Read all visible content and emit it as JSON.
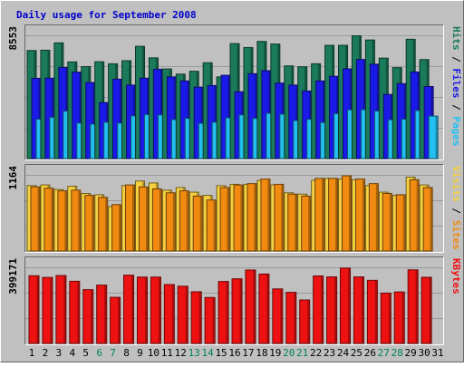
{
  "chart_data": [
    {
      "type": "bar",
      "title": "Daily usage for September 2008",
      "categories": [
        "1",
        "2",
        "3",
        "4",
        "5",
        "6",
        "7",
        "8",
        "9",
        "10",
        "11",
        "12",
        "13",
        "14",
        "15",
        "16",
        "17",
        "18",
        "19",
        "20",
        "21",
        "22",
        "23",
        "24",
        "25",
        "26",
        "27",
        "28",
        "29",
        "30",
        "31"
      ],
      "weekend_days": [
        "6",
        "7",
        "13",
        "14",
        "20",
        "21",
        "27",
        "28"
      ],
      "y_tick_label": "8553",
      "ylim": [
        0,
        8553
      ],
      "legend_right": [
        "Pages",
        "Files",
        "Hits"
      ],
      "legend_sep": " / ",
      "grid": true,
      "series": [
        {
          "name": "Hits",
          "color": "#1a7a5a",
          "values": [
            7500,
            7520,
            8030,
            6710,
            6380,
            6720,
            6580,
            6790,
            7790,
            6990,
            6220,
            5860,
            6060,
            6650,
            5670,
            7980,
            7710,
            8130,
            7950,
            6430,
            6370,
            6580,
            7860,
            7860,
            8520,
            8230,
            6970,
            6310,
            8280,
            6870,
            null
          ]
        },
        {
          "name": "Files",
          "color": "#1a1ae8",
          "values": [
            5570,
            5580,
            6320,
            6000,
            5280,
            3890,
            5510,
            5100,
            5580,
            6200,
            5670,
            5390,
            4960,
            5070,
            5780,
            4640,
            5890,
            6100,
            5240,
            5100,
            4690,
            5390,
            5710,
            6230,
            6880,
            6550,
            4450,
            5200,
            6010,
            5000,
            null
          ]
        },
        {
          "name": "Pages",
          "color": "#22c0f0",
          "values": [
            2730,
            2860,
            3290,
            2470,
            2390,
            2520,
            2460,
            2960,
            3050,
            3030,
            2700,
            2790,
            2440,
            2520,
            2830,
            3030,
            2780,
            3140,
            3080,
            2640,
            2720,
            2500,
            3120,
            3380,
            3390,
            3300,
            2690,
            2730,
            3330,
            2950,
            null
          ]
        }
      ]
    },
    {
      "type": "bar",
      "y_tick_label": "1164",
      "ylim": [
        0,
        1164
      ],
      "legend_right": [
        "Sites",
        "Visits"
      ],
      "legend_sep": " / ",
      "grid": true,
      "series": [
        {
          "name": "Visits",
          "color": "#f5d040",
          "values": [
            1000,
            1010,
            940,
            990,
            880,
            860,
            680,
            1000,
            1070,
            1040,
            930,
            970,
            900,
            850,
            1000,
            1020,
            1020,
            1080,
            1010,
            890,
            870,
            1080,
            1110,
            1100,
            1090,
            1000,
            900,
            850,
            1130,
            1010,
            null
          ]
        },
        {
          "name": "Sites",
          "color": "#f08a10",
          "values": [
            980,
            960,
            920,
            930,
            850,
            820,
            710,
            1010,
            980,
            950,
            890,
            920,
            840,
            780,
            970,
            1010,
            1030,
            1100,
            1020,
            870,
            840,
            1110,
            1110,
            1150,
            1100,
            1030,
            880,
            860,
            1090,
            970,
            null
          ]
        }
      ]
    },
    {
      "type": "bar",
      "y_tick_label": "399171",
      "ylim": [
        0,
        399171
      ],
      "legend_right": [
        "KBytes"
      ],
      "grid": true,
      "series": [
        {
          "name": "KBytes",
          "color": "#ee1111",
          "values": [
            355000,
            346000,
            356000,
            326000,
            282000,
            306000,
            242000,
            358000,
            348000,
            348000,
            309000,
            300000,
            271000,
            241000,
            325000,
            339000,
            385000,
            364000,
            286000,
            268000,
            228000,
            354000,
            349000,
            395000,
            349000,
            331000,
            264000,
            270000,
            386000,
            347000,
            null
          ]
        }
      ]
    }
  ],
  "colors": {
    "title_blue": "#0000cc",
    "frame_bg": "#c0c0c0",
    "plot_bg": "#c0c0c0",
    "weekday_label": "#000000",
    "weekend_label": "#00805a"
  }
}
